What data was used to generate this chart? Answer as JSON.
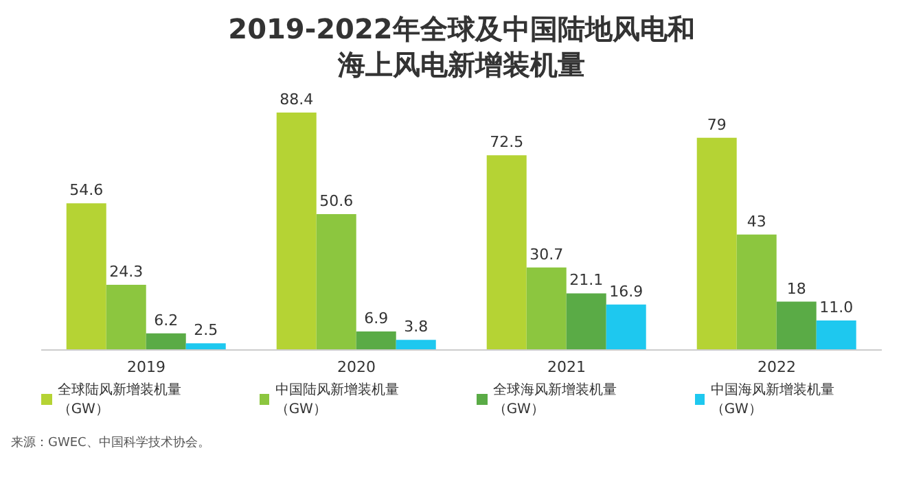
{
  "chart_data": {
    "type": "bar",
    "title": "2019-2022年全球及中国陆地风电和海上风电新增装机量",
    "categories": [
      "2019",
      "2020",
      "2021",
      "2022"
    ],
    "series": [
      {
        "name": "全球陆风新增装机量（GW）",
        "color": "#b5d334",
        "values": [
          54.6,
          88.4,
          72.5,
          79
        ],
        "value_labels": [
          "54.6",
          "88.4",
          "72.5",
          "79"
        ]
      },
      {
        "name": "中国陆风新增装机量（GW）",
        "color": "#8cc63f",
        "values": [
          24.3,
          50.6,
          30.7,
          43
        ],
        "value_labels": [
          "24.3",
          "50.6",
          "30.7",
          "43"
        ]
      },
      {
        "name": "全球海风新增装机量（GW）",
        "color": "#5aab46",
        "values": [
          6.2,
          6.9,
          21.1,
          18
        ],
        "value_labels": [
          "6.2",
          "6.9",
          "21.1",
          "18"
        ]
      },
      {
        "name": "中国海风新增装机量（GW）",
        "color": "#1ec8ef",
        "values": [
          2.5,
          3.8,
          16.9,
          11.0
        ],
        "value_labels": [
          "2.5",
          "3.8",
          "16.9",
          "11.0"
        ]
      }
    ],
    "legend": "bottom",
    "annotations": [
      "来源：GWEC、中国科学技术协会。"
    ]
  }
}
